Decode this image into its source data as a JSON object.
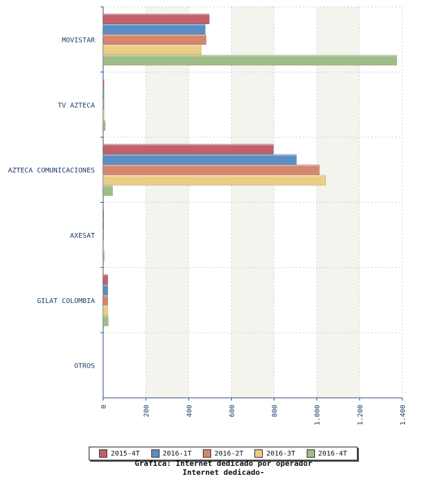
{
  "chart_data": {
    "type": "bar",
    "orientation": "horizontal",
    "categories": [
      "MOVISTAR",
      "TV AZTECA",
      "AZTECA COMUNICACIONES",
      "AXESAT",
      "GILAT COLOMBIA",
      "OTROS"
    ],
    "series": [
      {
        "name": "2015-4T",
        "color": "#c0616b",
        "values": [
          497,
          4,
          797,
          3,
          22,
          0
        ]
      },
      {
        "name": "2016-1T",
        "color": "#5b8fc3",
        "values": [
          478,
          4,
          905,
          3,
          22,
          0
        ]
      },
      {
        "name": "2016-2T",
        "color": "#d4876e",
        "values": [
          482,
          4,
          1012,
          3,
          22,
          0
        ]
      },
      {
        "name": "2016-3T",
        "color": "#ebcd85",
        "values": [
          459,
          4,
          1042,
          3,
          22,
          0
        ]
      },
      {
        "name": "2016-4T",
        "color": "#9fbd88",
        "values": [
          1374,
          10,
          44,
          5,
          24,
          0
        ]
      }
    ],
    "x_ticks": [
      "0",
      "200",
      "400",
      "600",
      "800",
      "1.000",
      "1.200",
      "1.400"
    ],
    "xlim": [
      0,
      1400
    ],
    "grid": true,
    "legend_position": "bottom",
    "caption_lines": [
      "Grafica: Internet dedicado por operador",
      "Internet dedicado-"
    ]
  }
}
